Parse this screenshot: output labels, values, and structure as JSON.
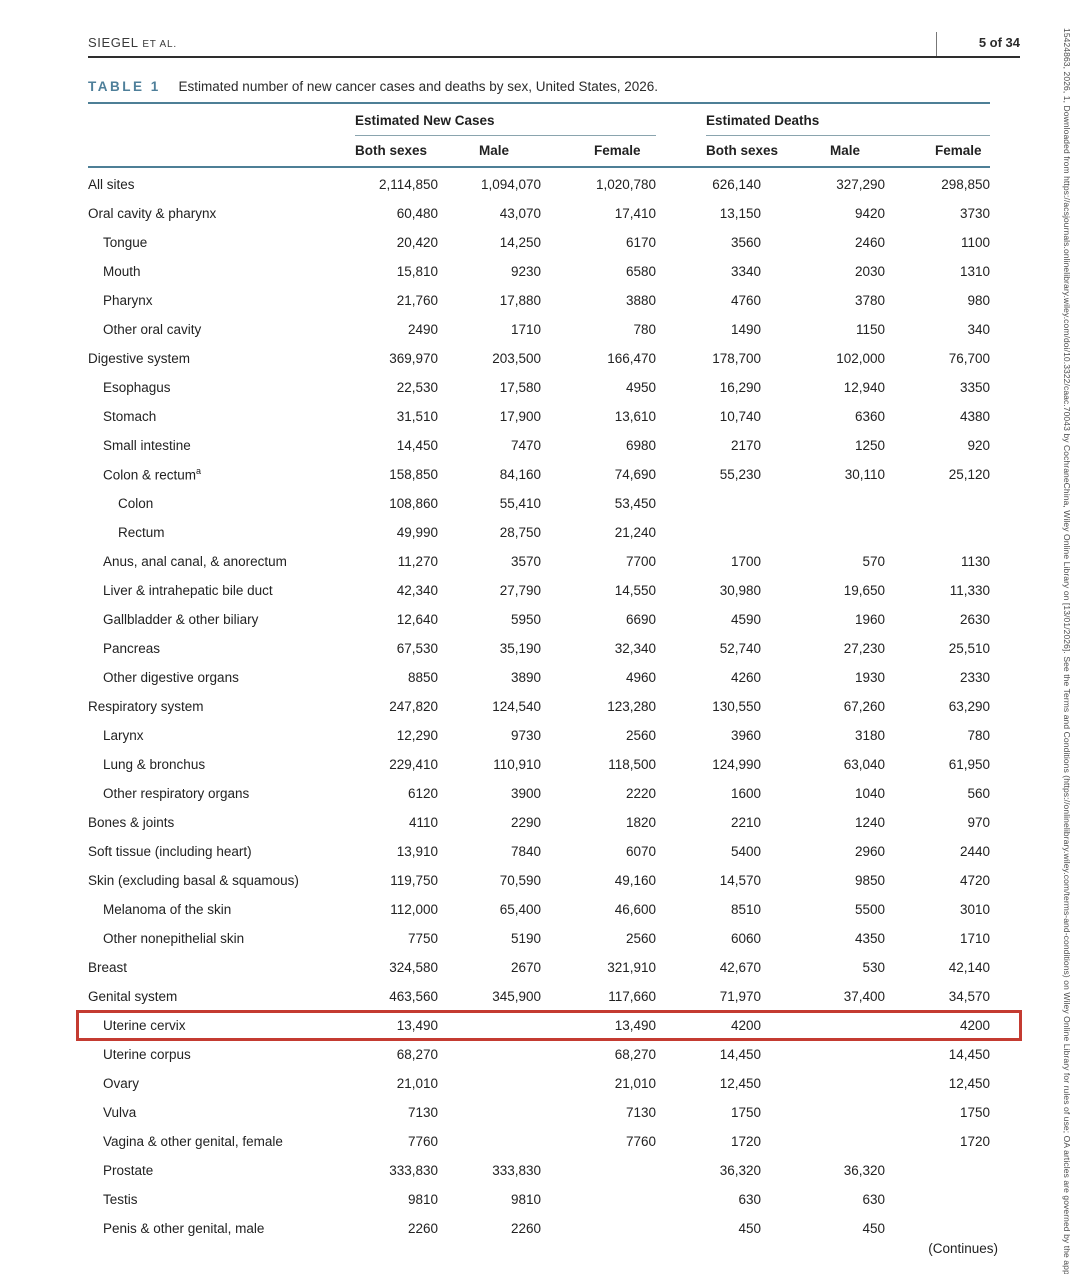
{
  "page_header": {
    "authors": "SIEGEL",
    "et_al": "ET AL.",
    "page_number": "5 of 34"
  },
  "caption": {
    "label": "TABLE 1",
    "text": "Estimated number of new cancer cases and deaths by sex, United States, 2026."
  },
  "table": {
    "column_groups": {
      "cases": "Estimated New Cases",
      "deaths": "Estimated Deaths"
    },
    "sub_headers": [
      "Both sexes",
      "Male",
      "Female",
      "Both sexes",
      "Male",
      "Female"
    ],
    "rows": [
      {
        "label": "All sites",
        "indent": 0,
        "values": [
          "2,114,850",
          "1,094,070",
          "1,020,780",
          "626,140",
          "327,290",
          "298,850"
        ]
      },
      {
        "label": "Oral cavity & pharynx",
        "indent": 0,
        "values": [
          "60,480",
          "43,070",
          "17,410",
          "13,150",
          "9420",
          "3730"
        ]
      },
      {
        "label": "Tongue",
        "indent": 1,
        "values": [
          "20,420",
          "14,250",
          "6170",
          "3560",
          "2460",
          "1100"
        ]
      },
      {
        "label": "Mouth",
        "indent": 1,
        "values": [
          "15,810",
          "9230",
          "6580",
          "3340",
          "2030",
          "1310"
        ]
      },
      {
        "label": "Pharynx",
        "indent": 1,
        "values": [
          "21,760",
          "17,880",
          "3880",
          "4760",
          "3780",
          "980"
        ]
      },
      {
        "label": "Other oral cavity",
        "indent": 1,
        "values": [
          "2490",
          "1710",
          "780",
          "1490",
          "1150",
          "340"
        ]
      },
      {
        "label": "Digestive system",
        "indent": 0,
        "values": [
          "369,970",
          "203,500",
          "166,470",
          "178,700",
          "102,000",
          "76,700"
        ]
      },
      {
        "label": "Esophagus",
        "indent": 1,
        "values": [
          "22,530",
          "17,580",
          "4950",
          "16,290",
          "12,940",
          "3350"
        ]
      },
      {
        "label": "Stomach",
        "indent": 1,
        "values": [
          "31,510",
          "17,900",
          "13,610",
          "10,740",
          "6360",
          "4380"
        ]
      },
      {
        "label": "Small intestine",
        "indent": 1,
        "values": [
          "14,450",
          "7470",
          "6980",
          "2170",
          "1250",
          "920"
        ]
      },
      {
        "label": "Colon & rectum",
        "sup": "a",
        "indent": 1,
        "values": [
          "158,850",
          "84,160",
          "74,690",
          "55,230",
          "30,110",
          "25,120"
        ]
      },
      {
        "label": "Colon",
        "indent": 2,
        "values": [
          "108,860",
          "55,410",
          "53,450",
          "",
          "",
          ""
        ]
      },
      {
        "label": "Rectum",
        "indent": 2,
        "values": [
          "49,990",
          "28,750",
          "21,240",
          "",
          "",
          ""
        ]
      },
      {
        "label": "Anus, anal canal, & anorectum",
        "indent": 1,
        "values": [
          "11,270",
          "3570",
          "7700",
          "1700",
          "570",
          "1130"
        ]
      },
      {
        "label": "Liver & intrahepatic bile duct",
        "indent": 1,
        "values": [
          "42,340",
          "27,790",
          "14,550",
          "30,980",
          "19,650",
          "11,330"
        ]
      },
      {
        "label": "Gallbladder & other biliary",
        "indent": 1,
        "values": [
          "12,640",
          "5950",
          "6690",
          "4590",
          "1960",
          "2630"
        ]
      },
      {
        "label": "Pancreas",
        "indent": 1,
        "values": [
          "67,530",
          "35,190",
          "32,340",
          "52,740",
          "27,230",
          "25,510"
        ]
      },
      {
        "label": "Other digestive organs",
        "indent": 1,
        "values": [
          "8850",
          "3890",
          "4960",
          "4260",
          "1930",
          "2330"
        ]
      },
      {
        "label": "Respiratory system",
        "indent": 0,
        "values": [
          "247,820",
          "124,540",
          "123,280",
          "130,550",
          "67,260",
          "63,290"
        ]
      },
      {
        "label": "Larynx",
        "indent": 1,
        "values": [
          "12,290",
          "9730",
          "2560",
          "3960",
          "3180",
          "780"
        ]
      },
      {
        "label": "Lung & bronchus",
        "indent": 1,
        "values": [
          "229,410",
          "110,910",
          "118,500",
          "124,990",
          "63,040",
          "61,950"
        ]
      },
      {
        "label": "Other respiratory organs",
        "indent": 1,
        "values": [
          "6120",
          "3900",
          "2220",
          "1600",
          "1040",
          "560"
        ]
      },
      {
        "label": "Bones & joints",
        "indent": 0,
        "values": [
          "4110",
          "2290",
          "1820",
          "2210",
          "1240",
          "970"
        ]
      },
      {
        "label": "Soft tissue (including heart)",
        "indent": 0,
        "values": [
          "13,910",
          "7840",
          "6070",
          "5400",
          "2960",
          "2440"
        ]
      },
      {
        "label": "Skin (excluding basal & squamous)",
        "indent": 0,
        "values": [
          "119,750",
          "70,590",
          "49,160",
          "14,570",
          "9850",
          "4720"
        ]
      },
      {
        "label": "Melanoma of the skin",
        "indent": 1,
        "values": [
          "112,000",
          "65,400",
          "46,600",
          "8510",
          "5500",
          "3010"
        ]
      },
      {
        "label": "Other nonepithelial skin",
        "indent": 1,
        "values": [
          "7750",
          "5190",
          "2560",
          "6060",
          "4350",
          "1710"
        ]
      },
      {
        "label": "Breast",
        "indent": 0,
        "values": [
          "324,580",
          "2670",
          "321,910",
          "42,670",
          "530",
          "42,140"
        ]
      },
      {
        "label": "Genital system",
        "indent": 0,
        "values": [
          "463,560",
          "345,900",
          "117,660",
          "71,970",
          "37,400",
          "34,570"
        ]
      },
      {
        "label": "Uterine cervix",
        "indent": 1,
        "highlight": true,
        "values": [
          "13,490",
          "",
          "13,490",
          "4200",
          "",
          "4200"
        ]
      },
      {
        "label": "Uterine corpus",
        "indent": 1,
        "values": [
          "68,270",
          "",
          "68,270",
          "14,450",
          "",
          "14,450"
        ]
      },
      {
        "label": "Ovary",
        "indent": 1,
        "values": [
          "21,010",
          "",
          "21,010",
          "12,450",
          "",
          "12,450"
        ]
      },
      {
        "label": "Vulva",
        "indent": 1,
        "values": [
          "7130",
          "",
          "7130",
          "1750",
          "",
          "1750"
        ]
      },
      {
        "label": "Vagina & other genital, female",
        "indent": 1,
        "values": [
          "7760",
          "",
          "7760",
          "1720",
          "",
          "1720"
        ]
      },
      {
        "label": "Prostate",
        "indent": 1,
        "values": [
          "333,830",
          "333,830",
          "",
          "36,320",
          "36,320",
          ""
        ]
      },
      {
        "label": "Testis",
        "indent": 1,
        "values": [
          "9810",
          "9810",
          "",
          "630",
          "630",
          ""
        ]
      },
      {
        "label": "Penis & other genital, male",
        "indent": 1,
        "values": [
          "2260",
          "2260",
          "",
          "450",
          "450",
          ""
        ]
      }
    ]
  },
  "footer": {
    "continues": "(Continues)"
  },
  "sidebar_text": "15424863, 2026, 1, Downloaded from https://acsjournals.onlinelibrary.wiley.com/doi/10.3322/caac.70043 by CochraneChina, Wiley Online Library on [13/01/2026]. See the Terms and Conditions (https://onlinelibrary.wiley.com/terms-and-conditions) on Wiley Online Library for rules of use; OA articles are governed by the applicable Creative Commons License",
  "colors": {
    "accent_teal": "#4e7f96",
    "highlight_red": "#c43b31"
  }
}
